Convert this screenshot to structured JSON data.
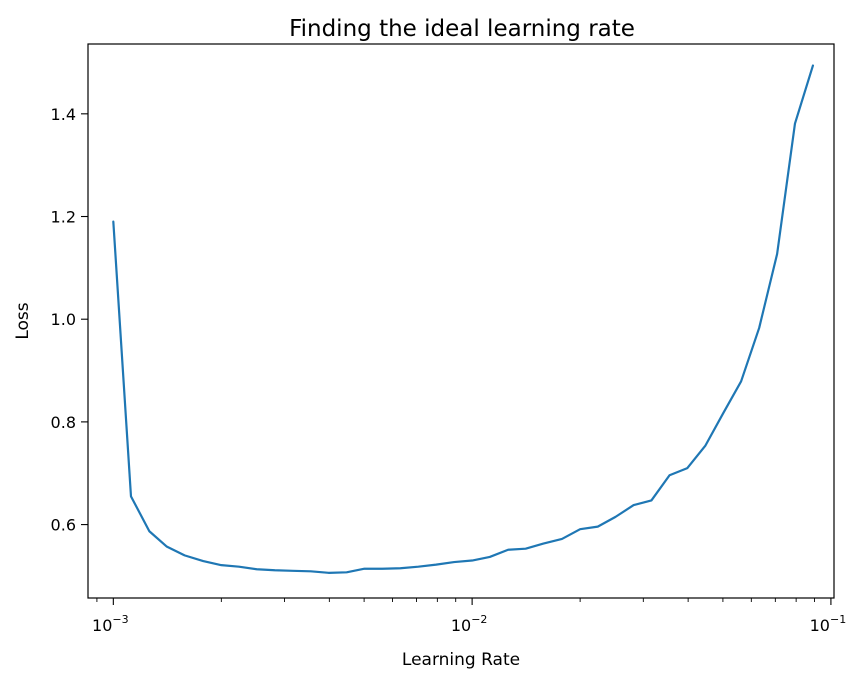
{
  "chart_data": {
    "type": "line",
    "title": "Finding the ideal learning rate",
    "xlabel": "Learning Rate",
    "ylabel": "Loss",
    "xscale": "log",
    "xlim": [
      0.00085,
      0.102
    ],
    "ylim": [
      0.457,
      1.536
    ],
    "grid": false,
    "legend": "none",
    "line_color": "#1f77b4",
    "x_ticks": [
      {
        "value": 0.001,
        "base": "10",
        "exp": "−3"
      },
      {
        "value": 0.01,
        "base": "10",
        "exp": "−2"
      },
      {
        "value": 0.1,
        "base": "10",
        "exp": "−1"
      }
    ],
    "y_ticks": [
      {
        "value": 0.6,
        "label": "0.6"
      },
      {
        "value": 0.8,
        "label": "0.8"
      },
      {
        "value": 1.0,
        "label": "1.0"
      },
      {
        "value": 1.2,
        "label": "1.2"
      },
      {
        "value": 1.4,
        "label": "1.4"
      }
    ],
    "series": [
      {
        "x": [
          0.001,
          0.00112,
          0.00126,
          0.00141,
          0.00158,
          0.00178,
          0.002,
          0.00224,
          0.00251,
          0.00282,
          0.00316,
          0.00355,
          0.00398,
          0.00447,
          0.00501,
          0.00562,
          0.00631,
          0.00708,
          0.00794,
          0.00891,
          0.01,
          0.0112,
          0.0126,
          0.0141,
          0.0158,
          0.0178,
          0.02,
          0.0224,
          0.0251,
          0.0282,
          0.0316,
          0.0355,
          0.0398,
          0.0447,
          0.0501,
          0.0562,
          0.0631,
          0.0708,
          0.0794,
          0.0891
        ],
        "y": [
          1.19,
          0.655,
          0.587,
          0.557,
          0.54,
          0.529,
          0.521,
          0.518,
          0.513,
          0.511,
          0.51,
          0.509,
          0.506,
          0.507,
          0.514,
          0.514,
          0.515,
          0.518,
          0.522,
          0.527,
          0.53,
          0.537,
          0.551,
          0.553,
          0.563,
          0.572,
          0.591,
          0.596,
          0.615,
          0.638,
          0.647,
          0.696,
          0.71,
          0.754,
          0.817,
          0.879,
          0.983,
          1.127,
          1.381,
          1.494
        ]
      }
    ]
  }
}
